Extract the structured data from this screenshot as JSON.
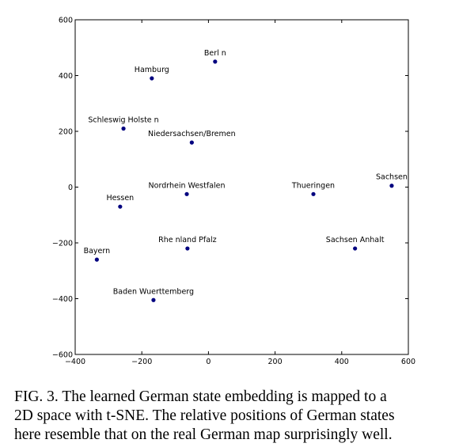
{
  "chart_data": {
    "type": "scatter",
    "x": [
      20,
      -170,
      -255,
      -50,
      -65,
      315,
      550,
      -265,
      -63,
      440,
      -335,
      -165
    ],
    "y": [
      450,
      390,
      210,
      160,
      -25,
      -25,
      5,
      -70,
      -220,
      -220,
      -260,
      -405
    ],
    "labels": [
      "Berl n",
      "Hamburg",
      "Schleswig Holste n",
      "Niedersachsen/Bremen",
      "Nordrhein Westfalen",
      "Thueringen",
      "Sachsen",
      "Hessen",
      "Rhe nland Pfalz",
      "Sachsen Anhalt",
      "Bayern",
      "Baden Wuerttemberg"
    ],
    "color": "#00007f",
    "xlim": [
      -400,
      600
    ],
    "ylim": [
      -600,
      600
    ],
    "xticks": [
      {
        "value": -400,
        "label": "−400"
      },
      {
        "value": -200,
        "label": "−200"
      },
      0,
      200,
      400,
      600
    ],
    "yticks": [
      {
        "value": -600,
        "label": "−600"
      },
      {
        "value": -400,
        "label": "−400"
      },
      {
        "value": -200,
        "label": "−200"
      },
      0,
      200,
      400,
      600
    ]
  },
  "caption": [
    "FIG. 3. The learned German state embedding is mapped to a",
    "2D space with t-SNE. The relative positions of German states",
    "here resemble that on the real German map surprisingly well."
  ]
}
